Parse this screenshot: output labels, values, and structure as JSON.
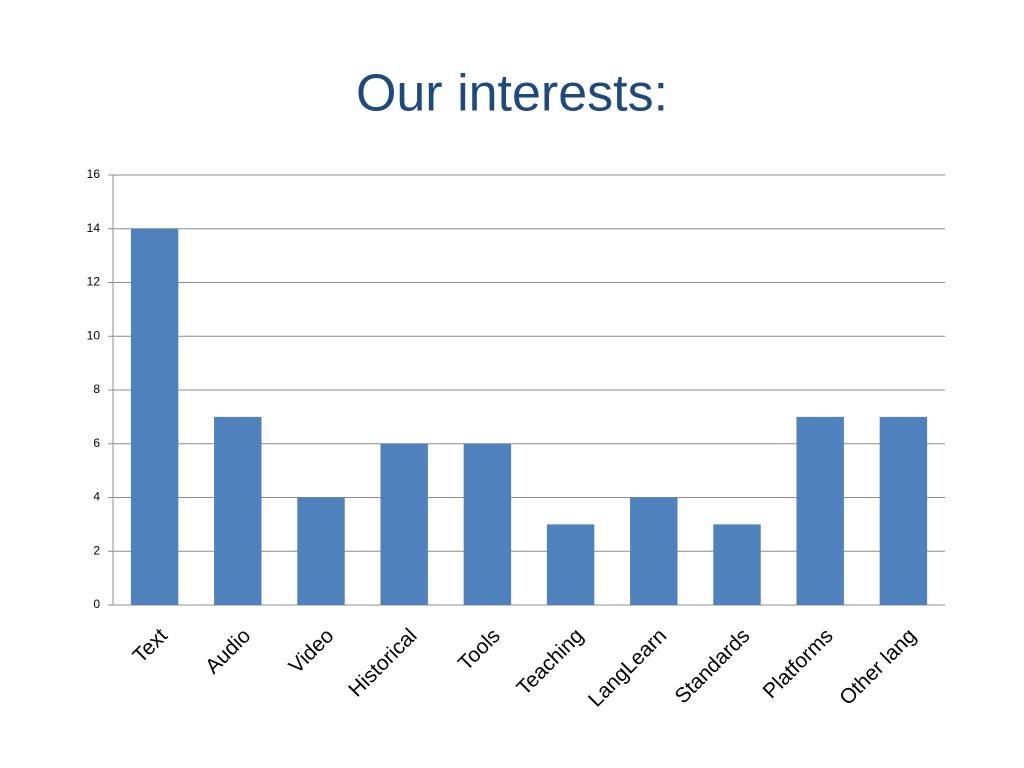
{
  "chart_data": {
    "type": "bar",
    "title": "Our interests:",
    "categories": [
      "Text",
      "Audio",
      "Video",
      "Historical",
      "Tools",
      "Teaching",
      "LangLearn",
      "Standards",
      "Platforms",
      "Other lang"
    ],
    "values": [
      14,
      7,
      4,
      6,
      6,
      3,
      4,
      3,
      7,
      7
    ],
    "color": "#4f81bd",
    "ylim": [
      0,
      16
    ],
    "yticks": [
      0,
      2,
      4,
      6,
      8,
      10,
      12,
      14,
      16
    ],
    "grid": true
  }
}
